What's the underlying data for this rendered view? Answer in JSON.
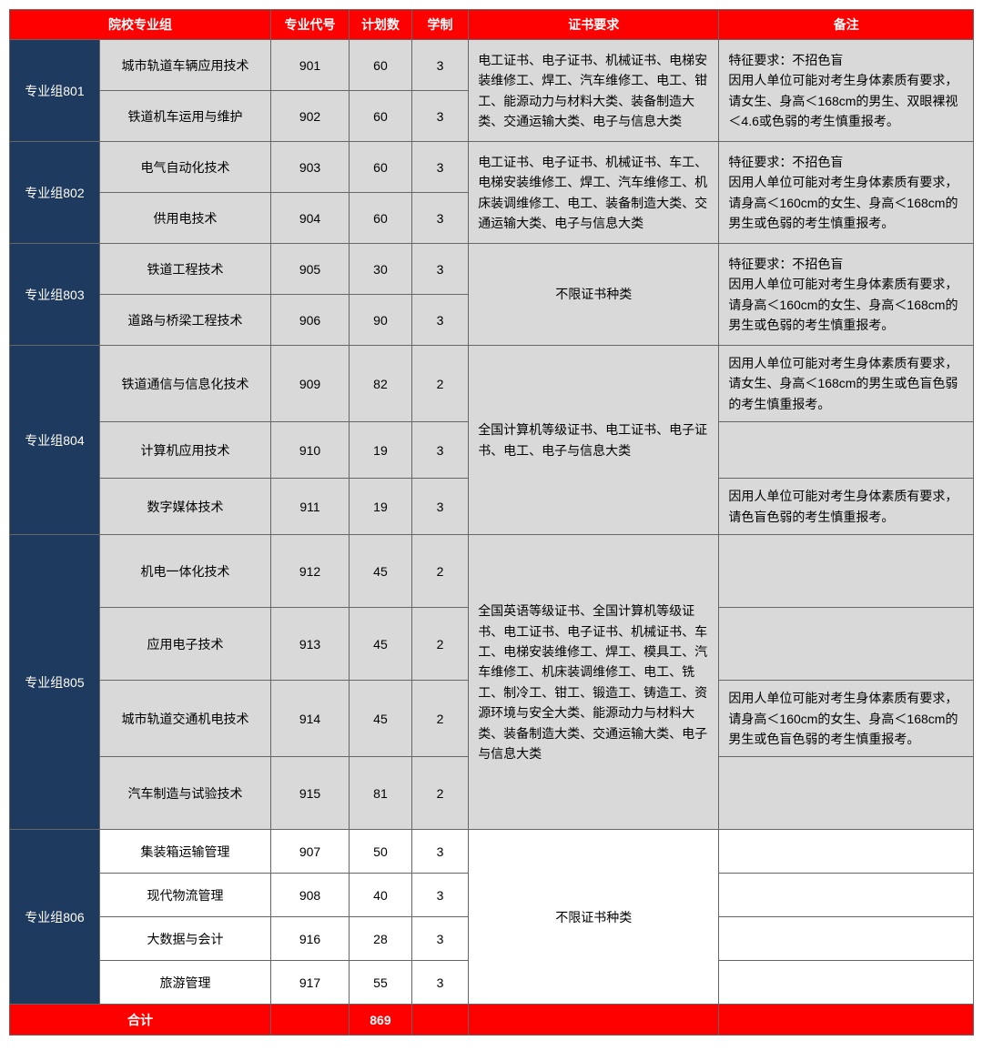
{
  "headers": {
    "group": "院校专业组",
    "code": "专业代号",
    "plan": "计划数",
    "years": "学制",
    "cert": "证书要求",
    "note": "备注"
  },
  "groups": [
    {
      "name": "专业组801",
      "cert": "电工证书、电子证书、机械证书、电梯安装维修工、焊工、汽车维修工、电工、钳工、能源动力与材料大类、装备制造大类、交通运输大类、电子与信息大类",
      "note": "特征要求：不招色盲\n因用人单位可能对考生身体素质有要求，请女生、身高＜168cm的男生、双眼裸视＜4.6或色弱的考生慎重报考。",
      "rows": [
        {
          "major": "城市轨道车辆应用技术",
          "code": "901",
          "plan": "60",
          "years": "3"
        },
        {
          "major": "铁道机车运用与维护",
          "code": "902",
          "plan": "60",
          "years": "3"
        }
      ]
    },
    {
      "name": "专业组802",
      "cert": "电工证书、电子证书、机械证书、车工、电梯安装维修工、焊工、汽车维修工、机床装调维修工、电工、装备制造大类、交通运输大类、电子与信息大类",
      "note": "特征要求：不招色盲\n因用人单位可能对考生身体素质有要求，请身高＜160cm的女生、身高＜168cm的男生或色弱的考生慎重报考。",
      "rows": [
        {
          "major": "电气自动化技术",
          "code": "903",
          "plan": "60",
          "years": "3"
        },
        {
          "major": "供用电技术",
          "code": "904",
          "plan": "60",
          "years": "3"
        }
      ]
    },
    {
      "name": "专业组803",
      "cert": "不限证书种类",
      "certCenter": true,
      "note": "特征要求：不招色盲\n因用人单位可能对考生身体素质有要求，请身高＜160cm的女生、身高＜168cm的男生或色弱的考生慎重报考。",
      "rows": [
        {
          "major": "铁道工程技术",
          "code": "905",
          "plan": "30",
          "years": "3"
        },
        {
          "major": "道路与桥梁工程技术",
          "code": "906",
          "plan": "90",
          "years": "3"
        }
      ]
    },
    {
      "name": "专业组804",
      "cert": "全国计算机等级证书、电工证书、电子证书、电工、电子与信息大类",
      "rows": [
        {
          "major": "铁道通信与信息化技术",
          "code": "909",
          "plan": "82",
          "years": "2",
          "note": "因用人单位可能对考生身体素质有要求，请女生、身高＜168cm的男生或色盲色弱的考生慎重报考。"
        },
        {
          "major": "计算机应用技术",
          "code": "910",
          "plan": "19",
          "years": "3",
          "note": ""
        },
        {
          "major": "数字媒体技术",
          "code": "911",
          "plan": "19",
          "years": "3",
          "note": "因用人单位可能对考生身体素质有要求，请色盲色弱的考生慎重报考。"
        }
      ]
    },
    {
      "name": "专业组805",
      "cert": "全国英语等级证书、全国计算机等级证书、电工证书、电子证书、机械证书、车工、电梯安装维修工、焊工、模具工、汽车维修工、机床装调维修工、电工、铣工、制冷工、钳工、锻造工、铸造工、资源环境与安全大类、能源动力与材料大类、装备制造大类、交通运输大类、电子与信息大类",
      "rows": [
        {
          "major": "机电一体化技术",
          "code": "912",
          "plan": "45",
          "years": "2",
          "note": ""
        },
        {
          "major": "应用电子技术",
          "code": "913",
          "plan": "45",
          "years": "2",
          "note": ""
        },
        {
          "major": "城市轨道交通机电技术",
          "code": "914",
          "plan": "45",
          "years": "2",
          "note": "因用人单位可能对考生身体素质有要求，请身高＜160cm的女生、身高＜168cm的男生或色盲色弱的考生慎重报考。"
        },
        {
          "major": "汽车制造与试验技术",
          "code": "915",
          "plan": "81",
          "years": "2",
          "note": ""
        }
      ]
    },
    {
      "name": "专业组806",
      "cert": "不限证书种类",
      "certCenter": true,
      "white": true,
      "rows": [
        {
          "major": "集装箱运输管理",
          "code": "907",
          "plan": "50",
          "years": "3",
          "note": ""
        },
        {
          "major": "现代物流管理",
          "code": "908",
          "plan": "40",
          "years": "3",
          "note": ""
        },
        {
          "major": "大数据与会计",
          "code": "916",
          "plan": "28",
          "years": "3",
          "note": ""
        },
        {
          "major": "旅游管理",
          "code": "917",
          "plan": "55",
          "years": "3",
          "note": ""
        }
      ]
    }
  ],
  "total": {
    "label": "合计",
    "value": "869"
  },
  "rowHeights": {
    "专业组801": 56,
    "专业组802": 56,
    "专业组803": 56,
    "专业组804": 62,
    "专业组805": 80,
    "专业组806": 48
  }
}
